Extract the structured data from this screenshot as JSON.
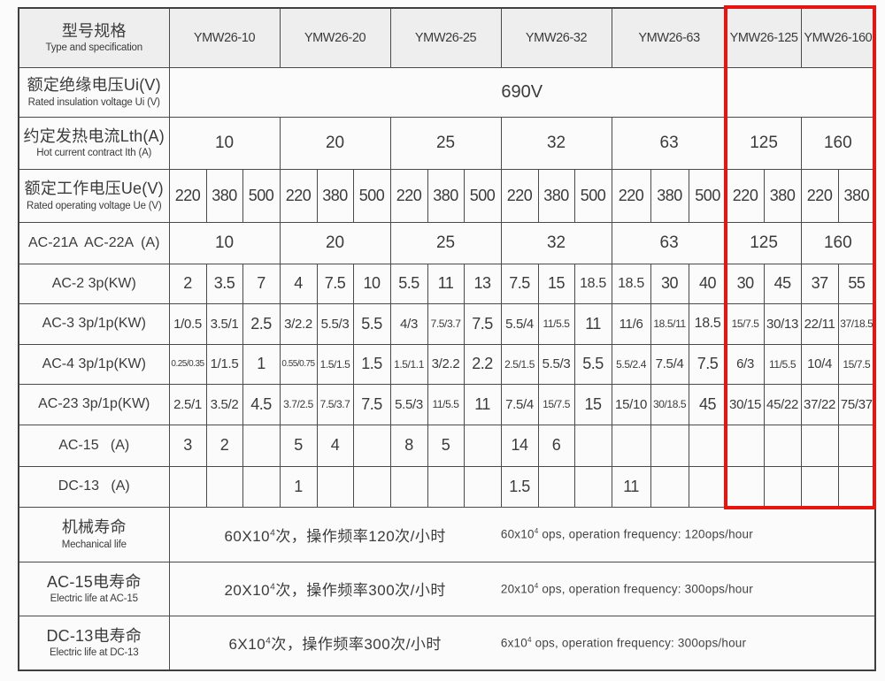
{
  "highlight": {
    "color": "#e8140f",
    "covers_models": [
      "YMW26-125",
      "YMW26-160"
    ]
  },
  "table": {
    "header": {
      "label_cn": "型号规格",
      "label_en": "Type and specification",
      "models": [
        "YMW26-10",
        "YMW26-20",
        "YMW26-25",
        "YMW26-32",
        "YMW26-63",
        "YMW26-125",
        "YMW26-160"
      ],
      "subcols": [
        3,
        3,
        3,
        3,
        3,
        2,
        2
      ]
    },
    "rows": [
      {
        "key": "insulation",
        "type": "span",
        "label_cn": "额定绝缘电压Ui(V)",
        "label_en": "Rated insulation voltage Ui (V)",
        "value": "690V"
      },
      {
        "key": "thermal-current",
        "type": "group",
        "label_cn": "约定发热电流Lth(A)",
        "label_en": "Hot current contract Ith (A)",
        "values": [
          "10",
          "20",
          "25",
          "32",
          "63",
          "125",
          "160"
        ]
      },
      {
        "key": "operating-voltage",
        "type": "cells",
        "label_cn": "额定工作电压Ue(V)",
        "label_en": "Rated operating voltage Ue (V)",
        "values": [
          "220",
          "380",
          "500",
          "220",
          "380",
          "500",
          "220",
          "380",
          "500",
          "220",
          "380",
          "500",
          "220",
          "380",
          "500",
          "220",
          "380",
          "220",
          "380"
        ]
      },
      {
        "key": "ac21a-ac22a",
        "type": "group",
        "label_cn": "AC-21A  AC-22A  (A)",
        "values": [
          "10",
          "20",
          "25",
          "32",
          "63",
          "125",
          "160"
        ]
      },
      {
        "key": "ac2",
        "type": "cells",
        "label_cn": "AC-2 3p(KW)",
        "values": [
          "2",
          "3.5",
          "7",
          "4",
          "7.5",
          "10",
          "5.5",
          "11",
          "13",
          "7.5",
          "15",
          "18.5",
          "18.5",
          "30",
          "40",
          "30",
          "45",
          "37",
          "55"
        ]
      },
      {
        "key": "ac3",
        "type": "cells",
        "label_cn": "AC-3 3p/1p(KW)",
        "values": [
          "1/0.5",
          "3.5/1",
          "2.5",
          "3/2.2",
          "5.5/3",
          "5.5",
          "4/3",
          "7.5/3.7",
          "7.5",
          "5.5/4",
          "11/5.5",
          "11",
          "11/6",
          "18.5/11",
          "18.5",
          "15/7.5",
          "30/13",
          "22/11",
          "37/18.5"
        ]
      },
      {
        "key": "ac4",
        "type": "cells",
        "label_cn": "AC-4 3p/1p(KW)",
        "values": [
          "0.25/0.35",
          "1/1.5",
          "1",
          "0.55/0.75",
          "1.5/1.5",
          "1.5",
          "1.5/1.1",
          "3/2.2",
          "2.2",
          "2.5/1.5",
          "5.5/3",
          "5.5",
          "5.5/2.4",
          "7.5/4",
          "7.5",
          "6/3",
          "11/5.5",
          "10/4",
          "15/7.5"
        ]
      },
      {
        "key": "ac23",
        "type": "cells",
        "label_cn": "AC-23 3p/1p(KW)",
        "values": [
          "2.5/1",
          "3.5/2",
          "4.5",
          "3.7/2.5",
          "7.5/3.7",
          "7.5",
          "5.5/3",
          "11/5.5",
          "11",
          "7.5/4",
          "15/7.5",
          "15",
          "15/10",
          "30/18.5",
          "45",
          "30/15",
          "45/22",
          "37/22",
          "75/37"
        ]
      },
      {
        "key": "ac15",
        "type": "cells",
        "label_cn": "AC-15   (A)",
        "values": [
          "3",
          "2",
          "",
          "5",
          "4",
          "",
          "8",
          "5",
          "",
          "14",
          "6",
          "",
          "",
          "",
          "",
          "",
          "",
          "",
          ""
        ]
      },
      {
        "key": "dc13",
        "type": "cells",
        "label_cn": "DC-13   (A)",
        "values": [
          "",
          "",
          "",
          "1",
          "",
          "",
          "",
          "",
          "",
          "1.5",
          "",
          "",
          "11",
          "",
          "",
          "",
          "",
          "",
          ""
        ]
      },
      {
        "key": "mech-life",
        "type": "life",
        "label_cn": "机械寿命",
        "label_en": "Mechanical life",
        "cn": "60X10⁴次，操作频率120次/小时",
        "en": "60x10⁴ ops, operation frequency: 120ops/hour"
      },
      {
        "key": "ac15-life",
        "type": "life",
        "label_cn": "AC-15电寿命",
        "label_en": "Electric life at AC-15",
        "cn": "20X10⁴次，操作频率300次/小时",
        "en": "20x10⁴ ops, operation frequency: 300ops/hour"
      },
      {
        "key": "dc13-life",
        "type": "life",
        "label_cn": "DC-13电寿命",
        "label_en": "Electric life at DC-13",
        "cn": "6X10⁴次，操作频率300次/小时",
        "en": "6x10⁴ ops, operation frequency: 300ops/hour"
      }
    ],
    "row_heights": {
      "header": 67,
      "insulation": 56,
      "thermal-current": 59,
      "operating-voltage": 60,
      "ac21a-ac22a": 47,
      "ac2": 45,
      "ac3": 46,
      "ac4": 45,
      "ac23": 46,
      "ac15": 47,
      "dc13": 46,
      "mech-life": 62,
      "ac15-life": 61,
      "dc13-life": 62
    }
  }
}
